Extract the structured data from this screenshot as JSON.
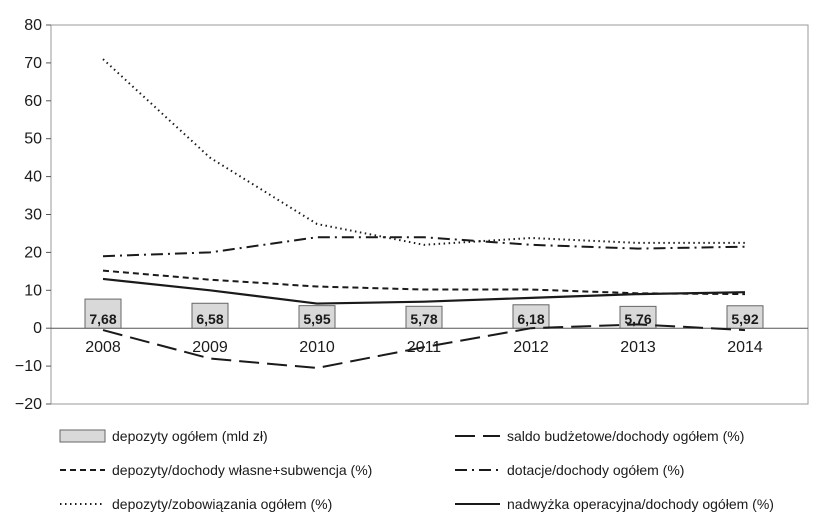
{
  "chart_data": {
    "type": "line",
    "categories": [
      "2008",
      "2009",
      "2010",
      "2011",
      "2012",
      "2013",
      "2014"
    ],
    "ylim": [
      -20,
      80
    ],
    "yticks": [
      "80",
      "70",
      "60",
      "50",
      "40",
      "30",
      "20",
      "10",
      "0",
      "−10",
      "−20"
    ],
    "ytick_values": [
      80,
      70,
      60,
      50,
      40,
      30,
      20,
      10,
      0,
      -10,
      -20
    ],
    "bar_series": {
      "name": "depozyty ogółem (mld zł)",
      "values": [
        7.68,
        6.58,
        5.95,
        5.78,
        6.18,
        5.76,
        5.92
      ],
      "labels": [
        "7,68",
        "6,58",
        "5,95",
        "5,78",
        "6,18",
        "5,76",
        "5,92"
      ],
      "color": "#d9d9d9"
    },
    "series": [
      {
        "name": "depozyty/dochody własne+subwencja (%)",
        "style": "short-dash",
        "values": [
          15.2,
          12.8,
          11.0,
          10.2,
          10.2,
          9.2,
          9.0
        ]
      },
      {
        "name": "depozyty/zobowiązania ogółem (%)",
        "style": "dotted",
        "values": [
          71.0,
          45.0,
          27.5,
          22.0,
          23.8,
          22.5,
          22.5
        ]
      },
      {
        "name": "saldo budżetowe/dochody ogółem (%)",
        "style": "long-dash",
        "values": [
          -0.5,
          -8.0,
          -10.5,
          -5.0,
          0.0,
          1.0,
          -0.5
        ]
      },
      {
        "name": "dotacje/dochody ogółem (%)",
        "style": "dash-dot",
        "values": [
          19.0,
          20.0,
          24.0,
          24.0,
          22.0,
          21.0,
          21.5
        ]
      },
      {
        "name": "nadwyżka operacyjna/dochody ogółem (%)",
        "style": "solid",
        "values": [
          13.0,
          10.0,
          6.5,
          7.0,
          8.0,
          9.0,
          9.5
        ]
      }
    ],
    "legend": {
      "placement": "bottom",
      "items": [
        {
          "label": "depozyty ogółem (mld zł)",
          "style": "bar"
        },
        {
          "label": "saldo budżetowe/dochody ogółem (%)",
          "style": "long-dash"
        },
        {
          "label": "depozyty/dochody własne+subwencja (%)",
          "style": "short-dash"
        },
        {
          "label": "dotacje/dochody ogółem (%)",
          "style": "dash-dot"
        },
        {
          "label": "depozyty/zobowiązania ogółem (%)",
          "style": "dotted"
        },
        {
          "label": "nadwyżka operacyjna/dochody ogółem (%)",
          "style": "solid"
        }
      ]
    },
    "grid": false,
    "line_color": "#1a1a1a"
  }
}
